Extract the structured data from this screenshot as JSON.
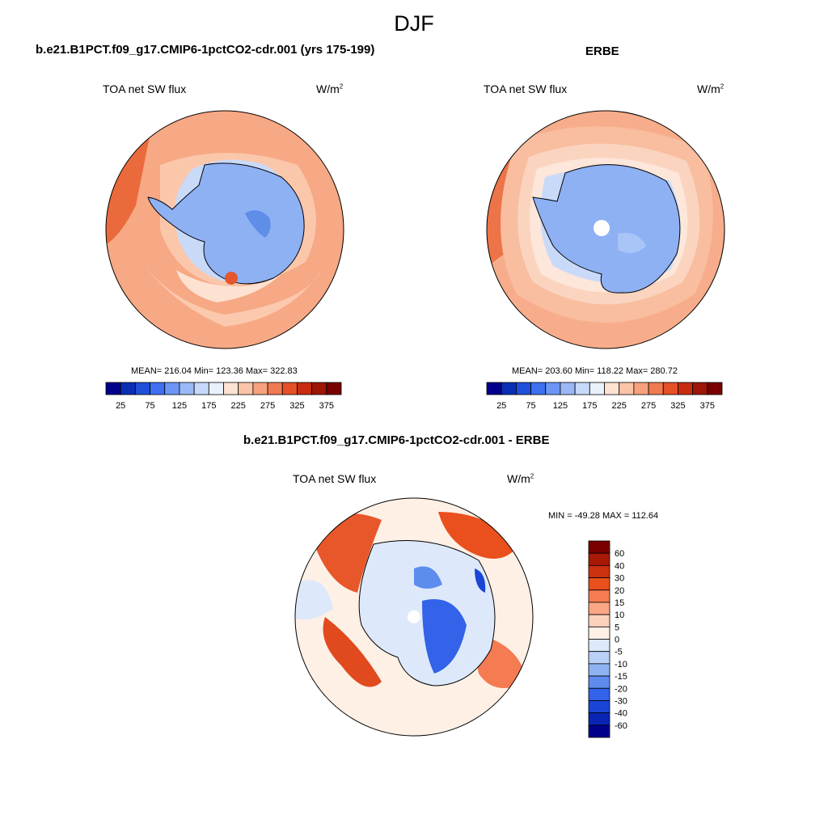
{
  "season": "DJF",
  "panels": [
    {
      "id": "model",
      "title": "b.e21.B1PCT.f09_g17.CMIP6-1pctCO2-cdr.001 (yrs 175-199)",
      "left_label": "TOA net SW flux",
      "units": "W/m",
      "units_sup": "2",
      "stats": "MEAN= 216.04  Min= 123.36  Max= 322.83"
    },
    {
      "id": "obs",
      "title": "ERBE",
      "left_label": "TOA net SW flux",
      "units": "W/m",
      "units_sup": "2",
      "stats": "MEAN= 203.60  Min= 118.22  Max= 280.72"
    },
    {
      "id": "diff",
      "title": "b.e21.B1PCT.f09_g17.CMIP6-1pctCO2-cdr.001 - ERBE",
      "left_label": "TOA net SW flux",
      "units": "W/m",
      "units_sup": "2",
      "stats": "MIN = -49.28 MAX = 112.64"
    }
  ],
  "abs_colorbar": {
    "colors": [
      "#00008b",
      "#0a2fb5",
      "#1f4fd9",
      "#3d6ff0",
      "#6c95f5",
      "#9ab8f7",
      "#c6d9fa",
      "#e9f1fd",
      "#fde2d2",
      "#fbc4a8",
      "#f7a27d",
      "#f07a52",
      "#e65026",
      "#c82c10",
      "#9e1606",
      "#780000"
    ],
    "labels": [
      "25",
      "75",
      "125",
      "175",
      "225",
      "275",
      "325",
      "375"
    ]
  },
  "diff_colorbar": {
    "colors": [
      "#780000",
      "#a81a05",
      "#cc3210",
      "#ea4f1e",
      "#f47b52",
      "#fba684",
      "#fdd2bd",
      "#fff0e6",
      "#dde9fb",
      "#b9d0f7",
      "#8eb3f2",
      "#5e8cee",
      "#3363e8",
      "#1a45d6",
      "#0a25b4",
      "#00008b"
    ],
    "labels": [
      "60",
      "40",
      "30",
      "20",
      "15",
      "10",
      "5",
      "0",
      "-5",
      "-10",
      "-15",
      "-20",
      "-30",
      "-40",
      "-60"
    ]
  },
  "map_colors": {
    "ice_blue": "#8eb1f4",
    "ice_light": "#a9c4f6",
    "ice_pale": "#c9daf9",
    "ocean_deep": "#f4a27e",
    "ocean_mid": "#f7b696",
    "ocean_light": "#fbd0b9",
    "ocean_pale": "#fde4d6",
    "edge_red": "#e4572e",
    "coast": "#000000"
  },
  "legend_icons": [
    "antarctica-coastline-icon",
    "pole-hole-icon"
  ]
}
